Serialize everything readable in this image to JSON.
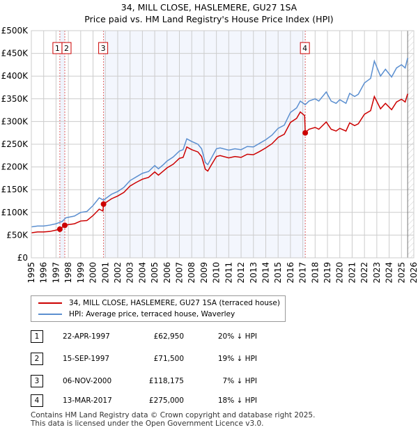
{
  "chart_data": {
    "type": "line",
    "title": "34, MILL CLOSE, HASLEMERE, GU27 1SA",
    "subtitle": "Price paid vs. HM Land Registry's House Price Index (HPI)",
    "xlim": [
      1995,
      2026
    ],
    "ylim": [
      0,
      500000
    ],
    "yticks": [
      {
        "v": 0,
        "label": "£0"
      },
      {
        "v": 50000,
        "label": "£50K"
      },
      {
        "v": 100000,
        "label": "£100K"
      },
      {
        "v": 150000,
        "label": "£150K"
      },
      {
        "v": 200000,
        "label": "£200K"
      },
      {
        "v": 250000,
        "label": "£250K"
      },
      {
        "v": 300000,
        "label": "£300K"
      },
      {
        "v": 350000,
        "label": "£350K"
      },
      {
        "v": 400000,
        "label": "£400K"
      },
      {
        "v": 450000,
        "label": "£450K"
      },
      {
        "v": 500000,
        "label": "£500K"
      }
    ],
    "xticks": [
      "1995",
      "1996",
      "1997",
      "1998",
      "1999",
      "2000",
      "2001",
      "2002",
      "2003",
      "2004",
      "2005",
      "2006",
      "2007",
      "2008",
      "2009",
      "2010",
      "2011",
      "2012",
      "2013",
      "2014",
      "2015",
      "2016",
      "2017",
      "2018",
      "2019",
      "2020",
      "2021",
      "2022",
      "2023",
      "2024",
      "2025",
      "2026"
    ],
    "grid": true,
    "series": [
      {
        "name": "34, MILL CLOSE, HASLEMERE, GU27 1SA (terraced house)",
        "color": "#cc0000",
        "points": [
          [
            1995,
            55
          ],
          [
            1995.5,
            57
          ],
          [
            1996,
            57
          ],
          [
            1996.5,
            58
          ],
          [
            1997,
            61
          ],
          [
            1997.3,
            63
          ],
          [
            1997.7,
            71.5
          ],
          [
            1998,
            73
          ],
          [
            1998.5,
            75
          ],
          [
            1999,
            81
          ],
          [
            1999.5,
            82
          ],
          [
            2000,
            93
          ],
          [
            2000.5,
            107
          ],
          [
            2000.8,
            103
          ],
          [
            2000.85,
            118
          ],
          [
            2001,
            121
          ],
          [
            2001.5,
            130
          ],
          [
            2002,
            136
          ],
          [
            2002.5,
            144
          ],
          [
            2003,
            158
          ],
          [
            2003.5,
            166
          ],
          [
            2004,
            173
          ],
          [
            2004.5,
            177
          ],
          [
            2005,
            189
          ],
          [
            2005.3,
            182
          ],
          [
            2005.7,
            191
          ],
          [
            2006,
            198
          ],
          [
            2006.5,
            206
          ],
          [
            2007,
            219
          ],
          [
            2007.3,
            221
          ],
          [
            2007.6,
            244
          ],
          [
            2008,
            238
          ],
          [
            2008.5,
            233
          ],
          [
            2008.8,
            223
          ],
          [
            2009.1,
            195
          ],
          [
            2009.3,
            191
          ],
          [
            2009.6,
            205
          ],
          [
            2010,
            223
          ],
          [
            2010.3,
            225
          ],
          [
            2011,
            220
          ],
          [
            2011.5,
            223
          ],
          [
            2012,
            221
          ],
          [
            2012.5,
            228
          ],
          [
            2013,
            227
          ],
          [
            2013.5,
            234
          ],
          [
            2014,
            242
          ],
          [
            2014.5,
            251
          ],
          [
            2015,
            265
          ],
          [
            2015.5,
            272
          ],
          [
            2016,
            298
          ],
          [
            2016.5,
            307
          ],
          [
            2016.8,
            321
          ],
          [
            2017.15,
            313
          ],
          [
            2017.2,
            275
          ],
          [
            2017.5,
            283
          ],
          [
            2018,
            287
          ],
          [
            2018.3,
            283
          ],
          [
            2018.9,
            299
          ],
          [
            2019.3,
            283
          ],
          [
            2019.7,
            279
          ],
          [
            2020,
            285
          ],
          [
            2020.5,
            279
          ],
          [
            2020.8,
            297
          ],
          [
            2021.2,
            291
          ],
          [
            2021.5,
            295
          ],
          [
            2022,
            316
          ],
          [
            2022.5,
            324
          ],
          [
            2022.8,
            355
          ],
          [
            2023.3,
            328
          ],
          [
            2023.7,
            340
          ],
          [
            2024.2,
            326
          ],
          [
            2024.6,
            343
          ],
          [
            2025,
            349
          ],
          [
            2025.3,
            343
          ],
          [
            2025.5,
            361
          ]
        ]
      },
      {
        "name": "HPI: Average price, terraced house, Waverley",
        "color": "#5b8fd0",
        "points": [
          [
            1995,
            68
          ],
          [
            1995.5,
            70
          ],
          [
            1996,
            70
          ],
          [
            1996.5,
            72
          ],
          [
            1997,
            75
          ],
          [
            1997.5,
            80
          ],
          [
            1997.8,
            88
          ],
          [
            1998.5,
            92
          ],
          [
            1999,
            100
          ],
          [
            1999.5,
            102
          ],
          [
            2000,
            115
          ],
          [
            2000.5,
            132
          ],
          [
            2000.85,
            127
          ],
          [
            2001,
            130
          ],
          [
            2001.5,
            140
          ],
          [
            2002,
            146
          ],
          [
            2002.5,
            155
          ],
          [
            2003,
            170
          ],
          [
            2003.5,
            178
          ],
          [
            2004,
            186
          ],
          [
            2004.5,
            190
          ],
          [
            2005,
            203
          ],
          [
            2005.3,
            196
          ],
          [
            2005.7,
            205
          ],
          [
            2006,
            213
          ],
          [
            2006.5,
            222
          ],
          [
            2007,
            235
          ],
          [
            2007.3,
            238
          ],
          [
            2007.6,
            262
          ],
          [
            2008,
            256
          ],
          [
            2008.5,
            250
          ],
          [
            2008.8,
            240
          ],
          [
            2009.1,
            210
          ],
          [
            2009.3,
            205
          ],
          [
            2009.6,
            220
          ],
          [
            2010,
            240
          ],
          [
            2010.3,
            242
          ],
          [
            2011,
            237
          ],
          [
            2011.5,
            240
          ],
          [
            2012,
            238
          ],
          [
            2012.5,
            245
          ],
          [
            2013,
            244
          ],
          [
            2013.5,
            252
          ],
          [
            2014,
            260
          ],
          [
            2014.5,
            270
          ],
          [
            2015,
            285
          ],
          [
            2015.5,
            292
          ],
          [
            2016,
            320
          ],
          [
            2016.5,
            330
          ],
          [
            2016.8,
            345
          ],
          [
            2017.2,
            337
          ],
          [
            2017.5,
            345
          ],
          [
            2018,
            350
          ],
          [
            2018.3,
            345
          ],
          [
            2018.9,
            365
          ],
          [
            2019.3,
            345
          ],
          [
            2019.7,
            340
          ],
          [
            2020,
            348
          ],
          [
            2020.5,
            340
          ],
          [
            2020.8,
            362
          ],
          [
            2021.2,
            355
          ],
          [
            2021.5,
            360
          ],
          [
            2022,
            385
          ],
          [
            2022.5,
            395
          ],
          [
            2022.8,
            433
          ],
          [
            2023.3,
            400
          ],
          [
            2023.7,
            415
          ],
          [
            2024.2,
            398
          ],
          [
            2024.6,
            418
          ],
          [
            2025,
            425
          ],
          [
            2025.3,
            418
          ],
          [
            2025.5,
            440
          ]
        ]
      }
    ],
    "sales": [
      {
        "n": "1",
        "date": "22-APR-1997",
        "x": 1997.31,
        "price": "£62,950",
        "value": 62950,
        "hpi": "20% ↓ HPI"
      },
      {
        "n": "2",
        "date": "15-SEP-1997",
        "x": 1997.71,
        "price": "£71,500",
        "value": 71500,
        "hpi": "19% ↓ HPI"
      },
      {
        "n": "3",
        "date": "06-NOV-2000",
        "x": 2000.85,
        "price": "£118,175",
        "value": 118175,
        "hpi": "7% ↓ HPI"
      },
      {
        "n": "4",
        "date": "13-MAR-2017",
        "x": 2017.2,
        "price": "£275,000",
        "value": 275000,
        "hpi": "18% ↓ HPI"
      }
    ],
    "forecast_start": 2025.5
  },
  "footer": [
    "Contains HM Land Registry data © Crown copyright and database right 2025.",
    "This data is licensed under the Open Government Licence v3.0."
  ]
}
